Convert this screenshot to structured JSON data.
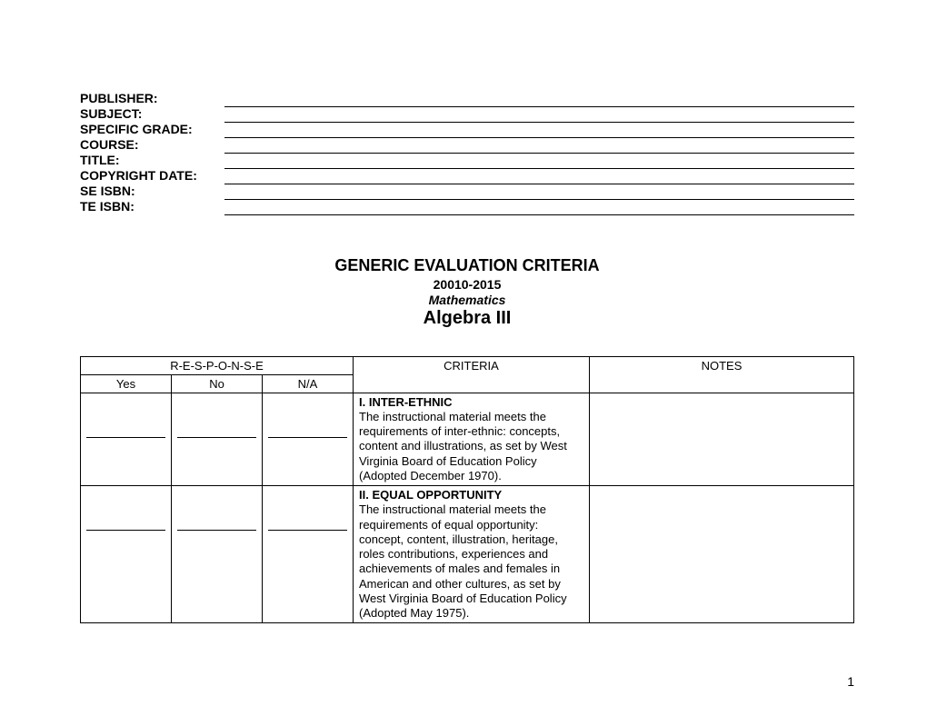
{
  "header": {
    "fields": [
      "PUBLISHER:",
      "SUBJECT:",
      "SPECIFIC GRADE:",
      "COURSE:",
      "TITLE:",
      "COPYRIGHT DATE:",
      "SE ISBN:",
      "TE ISBN:"
    ]
  },
  "title": {
    "main": "GENERIC EVALUATION CRITERIA",
    "years": "20010-2015",
    "subject": "Mathematics",
    "course": "Algebra III"
  },
  "table": {
    "response_header": "R-E-S-P-O-N-S-E",
    "columns": {
      "yes": "Yes",
      "no": "No",
      "na": "N/A",
      "criteria": "CRITERIA",
      "notes": "NOTES"
    },
    "rows": [
      {
        "heading": "I.   INTER-ETHNIC",
        "body": "The instructional material meets the requirements of inter-ethnic:  concepts, content and illustrations, as set by West Virginia Board of Education Policy (Adopted December 1970)."
      },
      {
        "heading": "II.  EQUAL OPPORTUNITY",
        "body": "The instructional material meets the requirements of equal opportunity:  concept, content, illustration, heritage, roles contributions, experiences and achievements of males and females in American and other cultures, as set by West Virginia Board of Education Policy (Adopted May 1975)."
      }
    ]
  },
  "page_number": "1"
}
